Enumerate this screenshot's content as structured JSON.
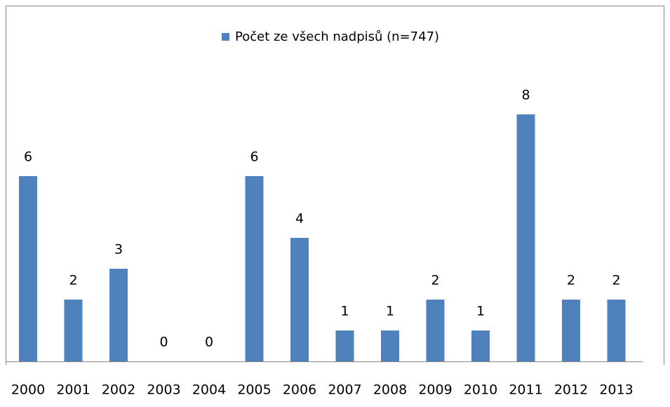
{
  "chart_data": {
    "type": "bar",
    "categories": [
      "2000",
      "2001",
      "2002",
      "2003",
      "2004",
      "2005",
      "2006",
      "2007",
      "2008",
      "2009",
      "2010",
      "2011",
      "2012",
      "2013"
    ],
    "series": [
      {
        "name": "Počet ze všech nadpisů (n=747)",
        "color": "#4f81bd",
        "values": [
          6,
          2,
          3,
          0,
          0,
          6,
          4,
          1,
          1,
          2,
          1,
          8,
          2,
          2
        ]
      }
    ],
    "legend": "top"
  }
}
